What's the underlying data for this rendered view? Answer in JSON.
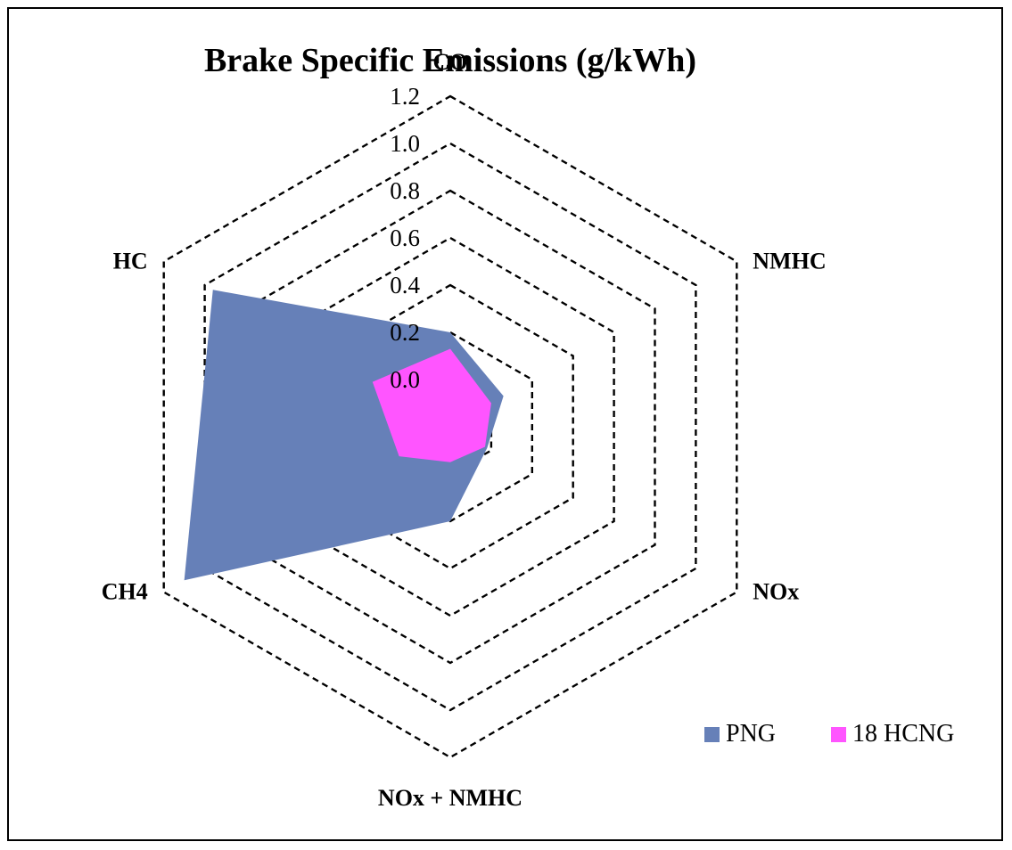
{
  "chart_data": {
    "type": "radar",
    "title": "Brake Specific Emissions (g/kWh)",
    "categories": [
      "CO",
      "NMHC",
      "NOx",
      "NOx + NMHC",
      "CH4",
      "HC"
    ],
    "radial_ticks": [
      "0.0",
      "0.2",
      "0.4",
      "0.6",
      "0.8",
      "1.0",
      "1.2"
    ],
    "rlim": [
      -0.2,
      1.2
    ],
    "series": [
      {
        "name": "PNG",
        "color": "#6680B8",
        "values": [
          0.2,
          0.06,
          -0.02,
          0.2,
          1.1,
          0.96
        ]
      },
      {
        "name": "18 HCNG",
        "color": "#FF55FF",
        "values": [
          0.13,
          0.0,
          -0.03,
          -0.05,
          0.05,
          0.18
        ]
      }
    ],
    "grid": "dashed hexagon",
    "legend_position": "bottom-right"
  }
}
